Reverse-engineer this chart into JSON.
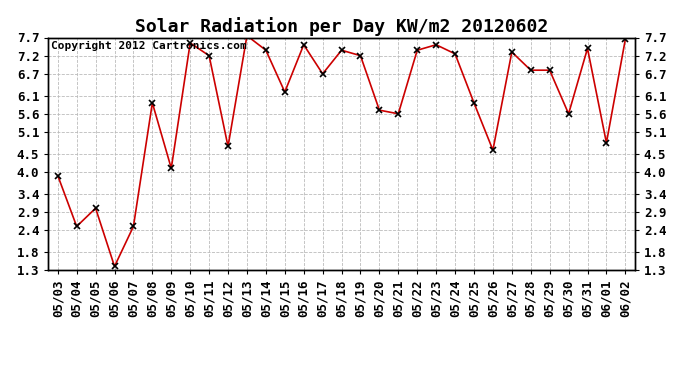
{
  "title": "Solar Radiation per Day KW/m2 20120602",
  "copyright": "Copyright 2012 Cartronics.com",
  "dates": [
    "05/03",
    "05/04",
    "05/05",
    "05/06",
    "05/07",
    "05/08",
    "05/09",
    "05/10",
    "05/11",
    "05/12",
    "05/13",
    "05/14",
    "05/15",
    "05/16",
    "05/17",
    "05/18",
    "05/19",
    "05/20",
    "05/21",
    "05/22",
    "05/23",
    "05/24",
    "05/25",
    "05/26",
    "05/27",
    "05/28",
    "05/29",
    "05/30",
    "05/31",
    "06/01",
    "06/02"
  ],
  "values": [
    3.9,
    2.5,
    3.0,
    1.4,
    2.5,
    5.9,
    4.1,
    7.55,
    7.2,
    4.7,
    7.75,
    7.35,
    6.2,
    7.5,
    6.7,
    7.35,
    7.2,
    5.7,
    5.6,
    7.35,
    7.5,
    7.25,
    5.9,
    4.6,
    7.3,
    6.8,
    6.8,
    5.6,
    7.4,
    4.8,
    7.65
  ],
  "line_color": "#cc0000",
  "marker_color": "#000000",
  "background_color": "#ffffff",
  "plot_bg_color": "#ffffff",
  "grid_color": "#bbbbbb",
  "ylim": [
    1.3,
    7.7
  ],
  "yticks": [
    1.3,
    1.8,
    2.4,
    2.9,
    3.4,
    4.0,
    4.5,
    5.1,
    5.6,
    6.1,
    6.7,
    7.2,
    7.7
  ],
  "title_fontsize": 13,
  "tick_fontsize": 9,
  "copyright_fontsize": 8
}
